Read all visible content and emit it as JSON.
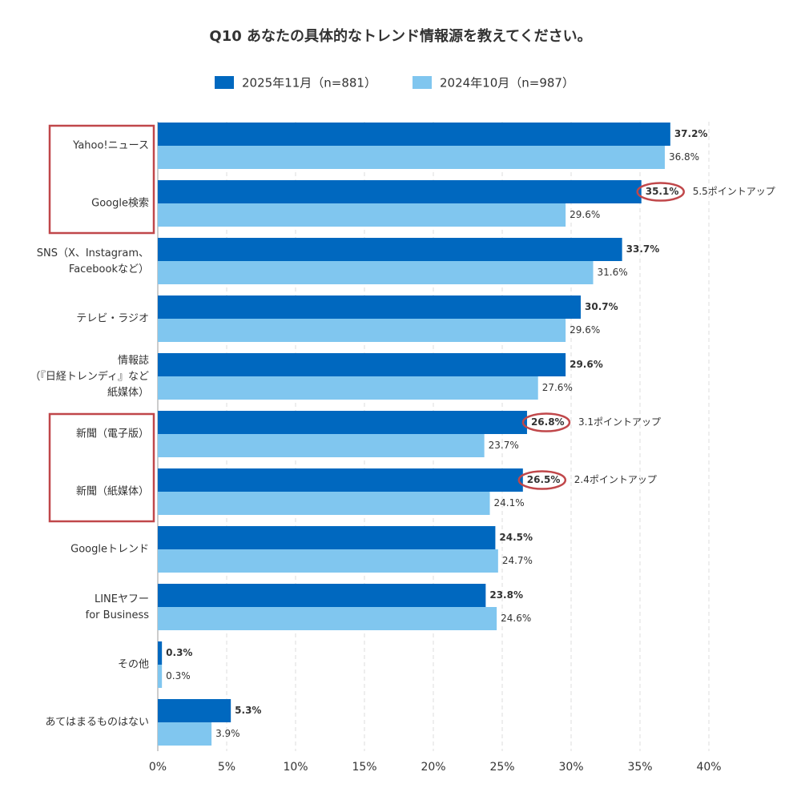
{
  "chart_data": {
    "type": "bar",
    "orientation": "horizontal",
    "title": "Q10 あなたの具体的なトレンド情報源を教えてください。",
    "categories": [
      "Yahoo!ニュース",
      "Google検索",
      "SNS（X、Instagram、\nFacebookなど）",
      "テレビ・ラジオ",
      "情報誌\n（『日経トレンディ』など\n紙媒体）",
      "新聞（電子版）",
      "新聞（紙媒体）",
      "Googleトレンド",
      "LINEヤフー\nfor Business",
      "その他",
      "あてはまるものはない"
    ],
    "series": [
      {
        "name": "2025年11月（n=881）",
        "color": "#0068bf",
        "label_color": "#0a5a9e",
        "values": [
          37.2,
          35.1,
          33.7,
          30.7,
          29.6,
          26.8,
          26.5,
          24.5,
          23.8,
          0.3,
          5.3
        ],
        "value_labels": [
          "37.2%",
          "35.1%",
          "33.7%",
          "30.7%",
          "29.6%",
          "26.8%",
          "26.5%",
          "24.5%",
          "23.8%",
          "0.3%",
          "5.3%"
        ]
      },
      {
        "name": "2024年10月（n=987）",
        "color": "#80c6ef",
        "label_color": "#4a95d6",
        "values": [
          36.8,
          29.6,
          31.6,
          29.6,
          27.6,
          23.7,
          24.1,
          24.7,
          24.6,
          0.3,
          3.9
        ],
        "value_labels": [
          "36.8%",
          "29.6%",
          "31.6%",
          "29.6%",
          "27.6%",
          "23.7%",
          "24.1%",
          "24.7%",
          "24.6%",
          "0.3%",
          "3.9%"
        ]
      }
    ],
    "annotations": [
      null,
      "5.5ポイントアップ",
      null,
      null,
      null,
      "3.1ポイントアップ",
      "2.4ポイントアップ",
      null,
      null,
      null,
      null
    ],
    "xlim": [
      0,
      40
    ],
    "xticks": [
      {
        "value": 0,
        "label": "0%"
      },
      {
        "value": 5,
        "label": "5%"
      },
      {
        "value": 10,
        "label": "10%"
      },
      {
        "value": 15,
        "label": "15%"
      },
      {
        "value": 20,
        "label": "20%"
      },
      {
        "value": 25,
        "label": "25%"
      },
      {
        "value": 30,
        "label": "30%"
      },
      {
        "value": 35,
        "label": "35%"
      },
      {
        "value": 40,
        "label": "40%"
      }
    ],
    "grid": true
  }
}
